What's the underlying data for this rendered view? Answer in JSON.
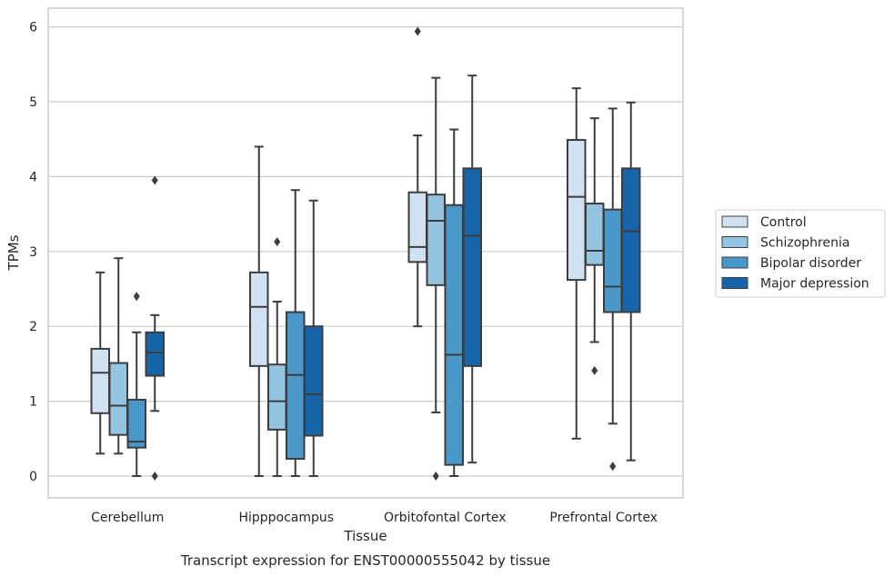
{
  "chart_data": {
    "type": "box",
    "title": "",
    "caption": "Transcript expression for ENST00000555042 by tissue",
    "xlabel": "Tissue",
    "ylabel": "TPMs",
    "ylim": [
      -0.3,
      6.25
    ],
    "yticks": [
      0,
      1,
      2,
      3,
      4,
      5,
      6
    ],
    "grid": "horizontal",
    "legend_position": "right",
    "categories": [
      "Cerebellum",
      "Hipppocampus",
      "Orbitofontal Cortex",
      "Prefrontal Cortex"
    ],
    "series": [
      {
        "name": "Control",
        "color": "#d0e1f2",
        "boxes": [
          {
            "whislo": 0.3,
            "q1": 0.84,
            "med": 1.38,
            "q3": 1.7,
            "whishi": 2.72,
            "fliers": []
          },
          {
            "whislo": 0.0,
            "q1": 1.47,
            "med": 2.26,
            "q3": 2.72,
            "whishi": 4.4,
            "fliers": []
          },
          {
            "whislo": 2.0,
            "q1": 2.86,
            "med": 3.06,
            "q3": 3.79,
            "whishi": 4.55,
            "fliers": [
              5.94
            ]
          },
          {
            "whislo": 0.5,
            "q1": 2.62,
            "med": 3.73,
            "q3": 4.49,
            "whishi": 5.18,
            "fliers": []
          }
        ]
      },
      {
        "name": "Schizophrenia",
        "color": "#94c4df",
        "boxes": [
          {
            "whislo": 0.3,
            "q1": 0.55,
            "med": 0.94,
            "q3": 1.51,
            "whishi": 2.91,
            "fliers": []
          },
          {
            "whislo": 0.0,
            "q1": 0.62,
            "med": 1.0,
            "q3": 1.49,
            "whishi": 2.33,
            "fliers": [
              3.13
            ]
          },
          {
            "whislo": 0.85,
            "q1": 2.55,
            "med": 3.41,
            "q3": 3.76,
            "whishi": 5.32,
            "fliers": [
              0.0
            ]
          },
          {
            "whislo": 1.79,
            "q1": 2.82,
            "med": 3.01,
            "q3": 3.64,
            "whishi": 4.78,
            "fliers": [
              1.41
            ]
          }
        ]
      },
      {
        "name": "Bipolar disorder",
        "color": "#4a98c9",
        "boxes": [
          {
            "whislo": 0.0,
            "q1": 0.38,
            "med": 0.46,
            "q3": 1.02,
            "whishi": 1.92,
            "fliers": [
              2.4
            ]
          },
          {
            "whislo": 0.0,
            "q1": 0.23,
            "med": 1.35,
            "q3": 2.19,
            "whishi": 3.82,
            "fliers": []
          },
          {
            "whislo": 0.0,
            "q1": 0.15,
            "med": 1.62,
            "q3": 3.62,
            "whishi": 4.63,
            "fliers": []
          },
          {
            "whislo": 0.7,
            "q1": 2.19,
            "med": 2.53,
            "q3": 3.56,
            "whishi": 4.91,
            "fliers": [
              0.13
            ]
          }
        ]
      },
      {
        "name": "Major depression",
        "color": "#1764ab",
        "boxes": [
          {
            "whislo": 0.87,
            "q1": 1.34,
            "med": 1.65,
            "q3": 1.92,
            "whishi": 2.15,
            "fliers": [
              3.95,
              0.0
            ]
          },
          {
            "whislo": 0.0,
            "q1": 0.54,
            "med": 1.09,
            "q3": 2.0,
            "whishi": 3.68,
            "fliers": []
          },
          {
            "whislo": 0.18,
            "q1": 1.47,
            "med": 3.21,
            "q3": 4.11,
            "whishi": 5.35,
            "fliers": []
          },
          {
            "whislo": 0.21,
            "q1": 2.19,
            "med": 3.27,
            "q3": 4.11,
            "whishi": 4.99,
            "fliers": []
          }
        ]
      }
    ]
  }
}
